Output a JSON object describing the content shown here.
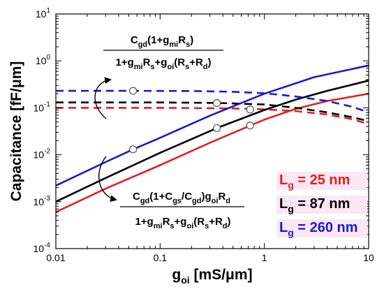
{
  "chart_data": {
    "type": "line",
    "xscale": "log",
    "yscale": "log",
    "xlim": [
      0.01,
      10
    ],
    "ylim": [
      0.0001,
      10
    ],
    "xticks": [
      {
        "value": 0.01,
        "label": "0.01"
      },
      {
        "value": 0.1,
        "label": "0.1"
      },
      {
        "value": 1,
        "label": "1"
      },
      {
        "value": 10,
        "label": "10"
      }
    ],
    "yticks": [
      {
        "value": 0.0001,
        "base": "10",
        "exp": "-4"
      },
      {
        "value": 0.001,
        "base": "10",
        "exp": "-3"
      },
      {
        "value": 0.01,
        "base": "10",
        "exp": "-2"
      },
      {
        "value": 0.1,
        "base": "10",
        "exp": "-1"
      },
      {
        "value": 1,
        "base": "10",
        "exp": "0"
      },
      {
        "value": 10,
        "base": "10",
        "exp": "1"
      }
    ],
    "xlabel": {
      "main": "g",
      "sub": "oi",
      "rest": " [mS/μm]"
    },
    "ylabel": "Capacitance [fF/μm]",
    "legend": {
      "placement": "right",
      "entries": [
        {
          "main": "L",
          "sub": "g",
          "rest": " = 25 nm",
          "color": "#e02020"
        },
        {
          "main": "L",
          "sub": "g",
          "rest": " = 87 nm",
          "color": "#000000"
        },
        {
          "main": "L",
          "sub": "g",
          "rest": " = 260 nm",
          "color": "#1a1acc"
        }
      ]
    },
    "series": [
      {
        "color": "#e02020",
        "style": "solid",
        "x": [
          0.01,
          0.03,
          0.1,
          0.3,
          0.7,
          1,
          2,
          4,
          10
        ],
        "y": [
          0.0006,
          0.0019,
          0.006,
          0.018,
          0.04,
          0.056,
          0.095,
          0.14,
          0.2
        ]
      },
      {
        "color": "#e02020",
        "style": "dashed",
        "x": [
          0.01,
          0.1,
          0.5,
          1,
          2,
          4,
          7,
          10
        ],
        "y": [
          0.1,
          0.1,
          0.097,
          0.093,
          0.085,
          0.072,
          0.057,
          0.045
        ]
      },
      {
        "color": "#000000",
        "style": "solid",
        "x": [
          0.01,
          0.03,
          0.1,
          0.35,
          1,
          2,
          4,
          10
        ],
        "y": [
          0.001,
          0.0032,
          0.011,
          0.037,
          0.09,
          0.15,
          0.23,
          0.38
        ]
      },
      {
        "color": "#000000",
        "style": "dashed",
        "x": [
          0.01,
          0.1,
          0.35,
          1,
          2,
          4,
          7,
          10
        ],
        "y": [
          0.13,
          0.13,
          0.127,
          0.118,
          0.1,
          0.08,
          0.063,
          0.052
        ]
      },
      {
        "color": "#1a1acc",
        "style": "solid",
        "x": [
          0.01,
          0.03,
          0.055,
          0.1,
          0.3,
          1,
          3,
          10
        ],
        "y": [
          0.0022,
          0.007,
          0.013,
          0.023,
          0.068,
          0.2,
          0.45,
          0.8
        ]
      },
      {
        "color": "#1a1acc",
        "style": "dashed",
        "x": [
          0.01,
          0.055,
          0.2,
          0.5,
          1,
          2,
          4,
          7,
          10
        ],
        "y": [
          0.23,
          0.23,
          0.228,
          0.22,
          0.205,
          0.175,
          0.14,
          0.105,
          0.08
        ]
      }
    ],
    "markers": [
      {
        "x": 0.055,
        "y": 0.23
      },
      {
        "x": 0.055,
        "y": 0.013
      },
      {
        "x": 0.35,
        "y": 0.126
      },
      {
        "x": 0.35,
        "y": 0.037
      },
      {
        "x": 0.73,
        "y": 0.092
      },
      {
        "x": 0.73,
        "y": 0.042
      }
    ],
    "annotations": {
      "upper": {
        "numerator": [
          {
            "t": "C"
          },
          {
            "t": "gd",
            "sub": true
          },
          {
            "t": "(1+g"
          },
          {
            "t": "mi",
            "sub": true
          },
          {
            "t": "R"
          },
          {
            "t": "s",
            "sub": true
          },
          {
            "t": ")"
          }
        ],
        "denominator": [
          {
            "t": "1+g"
          },
          {
            "t": "mi",
            "sub": true
          },
          {
            "t": "R"
          },
          {
            "t": "s",
            "sub": true
          },
          {
            "t": "+g"
          },
          {
            "t": "oi",
            "sub": true
          },
          {
            "t": "(R"
          },
          {
            "t": "s",
            "sub": true
          },
          {
            "t": "+R"
          },
          {
            "t": "d",
            "sub": true
          },
          {
            "t": ")"
          }
        ]
      },
      "lower": {
        "numerator": [
          {
            "t": "C"
          },
          {
            "t": "gd",
            "sub": true
          },
          {
            "t": "(1+C"
          },
          {
            "t": "gs",
            "sub": true
          },
          {
            "t": "/C"
          },
          {
            "t": "gd",
            "sub": true
          },
          {
            "t": ")g"
          },
          {
            "t": "oi",
            "sub": true
          },
          {
            "t": "R"
          },
          {
            "t": "d",
            "sub": true
          }
        ],
        "denominator": [
          {
            "t": "1+g"
          },
          {
            "t": "mi",
            "sub": true
          },
          {
            "t": "R"
          },
          {
            "t": "s",
            "sub": true
          },
          {
            "t": "+g"
          },
          {
            "t": "oi",
            "sub": true
          },
          {
            "t": "(R"
          },
          {
            "t": "s",
            "sub": true
          },
          {
            "t": "+R"
          },
          {
            "t": "d",
            "sub": true
          },
          {
            "t": ")"
          }
        ]
      }
    }
  }
}
